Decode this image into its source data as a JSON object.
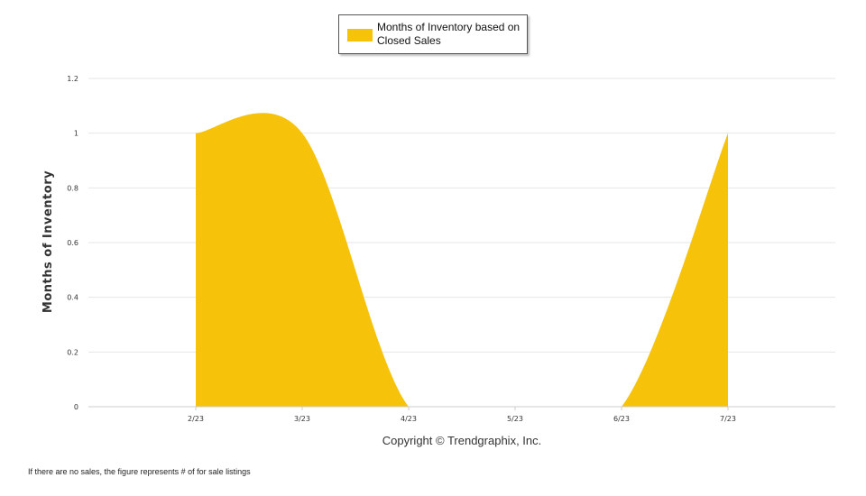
{
  "chart_data": {
    "type": "area",
    "categories": [
      "2/23",
      "3/23",
      "4/23",
      "5/23",
      "6/23",
      "7/23"
    ],
    "series": [
      {
        "name": "Months of Inventory based on Closed Sales",
        "values": [
          1,
          1,
          0,
          0,
          0,
          1
        ],
        "color": "#f7c30a"
      }
    ],
    "title": "",
    "xlabel": "",
    "ylabel": "Months of Inventory",
    "ylim": [
      0,
      1.2
    ],
    "yticks": [
      "0",
      "0.2",
      "0.4",
      "0.6",
      "0.8",
      "1",
      "1.2"
    ],
    "grid": true,
    "legend_position": "top-center",
    "copyright": "Copyright © Trendgraphix, Inc.",
    "footnote": "If there are no sales, the figure represents # of for sale listings"
  }
}
